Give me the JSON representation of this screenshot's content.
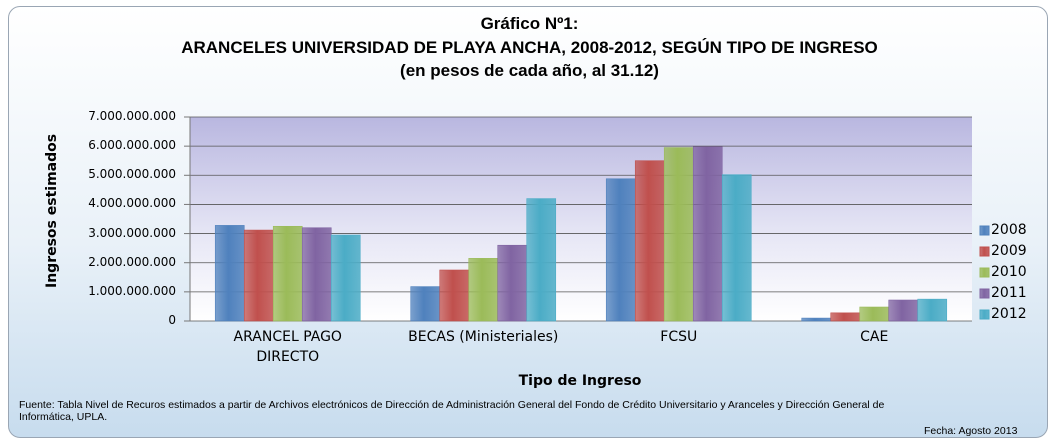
{
  "chart_data": {
    "type": "bar",
    "title": [
      "Gráfico Nº1:",
      "ARANCELES UNIVERSIDAD DE PLAYA ANCHA, 2008-2012, SEGÚN TIPO DE INGRESO",
      "(en pesos de cada año, al 31.12)"
    ],
    "y_label": "Ingresos estimados",
    "x_label": "Tipo de Ingreso",
    "categories": [
      "ARANCEL PAGO DIRECTO",
      "BECAS (Ministeriales)",
      "FCSU",
      "CAE"
    ],
    "series": [
      {
        "name": "2008",
        "color": "#4f81bd",
        "values": [
          3280000000,
          1180000000,
          4880000000,
          100000000
        ]
      },
      {
        "name": "2009",
        "color": "#c0504d",
        "values": [
          3120000000,
          1750000000,
          5500000000,
          280000000
        ]
      },
      {
        "name": "2010",
        "color": "#9bbb59",
        "values": [
          3250000000,
          2150000000,
          5950000000,
          480000000
        ]
      },
      {
        "name": "2011",
        "color": "#8064a2",
        "values": [
          3200000000,
          2600000000,
          5980000000,
          720000000
        ]
      },
      {
        "name": "2012",
        "color": "#4bacc6",
        "values": [
          2950000000,
          4200000000,
          5020000000,
          750000000
        ]
      }
    ],
    "ylim": [
      0,
      7000000000
    ],
    "yticks": [
      0,
      {
        "value": 1000000000,
        "label": "1.000.000.000"
      },
      {
        "value": 2000000000,
        "label": "2.000.000.000"
      },
      {
        "value": 3000000000,
        "label": "3.000.000.000"
      },
      {
        "value": 4000000000,
        "label": "4.000.000.000"
      },
      {
        "value": 5000000000,
        "label": "5.000.000.000"
      },
      {
        "value": 6000000000,
        "label": "6.000.000.000"
      },
      {
        "value": 7000000000,
        "label": "7.000.000.000"
      }
    ],
    "grid": true,
    "legend": "right",
    "source": "Fuente: Tabla Nivel de Recuros estimados a partir de Archivos electrónicos de Dirección de Administración General del Fondo de Crédito Universitario y Aranceles y Dirección General de Informática, UPLA.",
    "date_note": "Fecha: Agosto 2013"
  }
}
